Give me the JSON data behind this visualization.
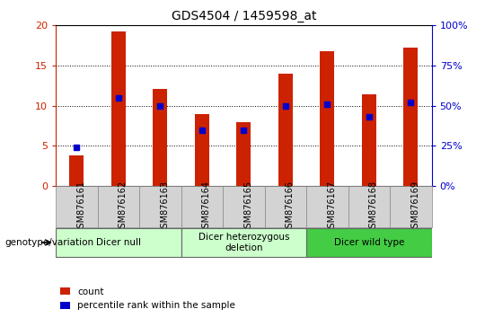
{
  "title": "GDS4504 / 1459598_at",
  "samples": [
    "GSM876161",
    "GSM876162",
    "GSM876163",
    "GSM876164",
    "GSM876165",
    "GSM876166",
    "GSM876167",
    "GSM876168",
    "GSM876169"
  ],
  "counts": [
    3.8,
    19.2,
    12.1,
    9.0,
    8.0,
    14.0,
    16.8,
    11.4,
    17.2
  ],
  "percentile_ranks": [
    24,
    55,
    50,
    35,
    35,
    50,
    51,
    43,
    52
  ],
  "groups": [
    {
      "label": "Dicer null",
      "start": 0,
      "end": 3,
      "color": "#CCFFCC"
    },
    {
      "label": "Dicer heterozygous\ndeletion",
      "start": 3,
      "end": 6,
      "color": "#CCFFCC"
    },
    {
      "label": "Dicer wild type",
      "start": 6,
      "end": 9,
      "color": "#44CC44"
    }
  ],
  "ylim_left": [
    0,
    20
  ],
  "ylim_right": [
    0,
    100
  ],
  "yticks_left": [
    0,
    5,
    10,
    15,
    20
  ],
  "yticks_right": [
    0,
    25,
    50,
    75,
    100
  ],
  "bar_color": "#CC2200",
  "dot_color": "#0000CC",
  "bar_width": 0.35,
  "left_axis_color": "#CC2200",
  "right_axis_color": "#0000CC",
  "legend_count_label": "count",
  "legend_percentile_label": "percentile rank within the sample",
  "genotype_label": "genotype/variation"
}
